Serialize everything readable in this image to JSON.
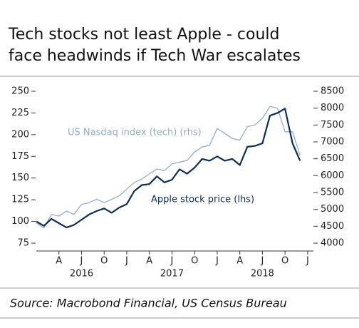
{
  "chart_data": {
    "type": "line",
    "title": [
      "Tech stocks not least Apple - could",
      "face headwinds if Tech War escalates"
    ],
    "source": "Source: Macrobond Financial, US Census Bureau",
    "x": [
      "2016-01",
      "2016-02",
      "2016-03",
      "2016-04",
      "2016-05",
      "2016-06",
      "2016-07",
      "2016-08",
      "2016-09",
      "2016-10",
      "2016-11",
      "2016-12",
      "2017-01",
      "2017-02",
      "2017-03",
      "2017-04",
      "2017-05",
      "2017-06",
      "2017-07",
      "2017-08",
      "2017-09",
      "2017-10",
      "2017-11",
      "2017-12",
      "2018-01",
      "2018-02",
      "2018-03",
      "2018-04",
      "2018-05",
      "2018-06",
      "2018-07",
      "2018-08",
      "2018-09",
      "2018-10",
      "2018-11",
      "2018-12"
    ],
    "series": [
      {
        "name": "US Nasdaq index (tech) (rhs)",
        "color": "#93abc9",
        "axis": "y2",
        "values": [
          4600,
          4450,
          4850,
          4800,
          4950,
          4850,
          5150,
          5200,
          5300,
          5200,
          5300,
          5400,
          5600,
          5800,
          5900,
          6050,
          6200,
          6150,
          6350,
          6400,
          6450,
          6700,
          6850,
          6900,
          7400,
          7250,
          7100,
          7050,
          7450,
          7500,
          7700,
          8050,
          8000,
          7300,
          7300,
          6600
        ]
      },
      {
        "name": "Apple stock price (lhs)",
        "color": "#0e2d52",
        "axis": "y",
        "values": [
          100,
          95,
          103,
          98,
          93,
          96,
          102,
          108,
          112,
          115,
          110,
          116,
          120,
          135,
          142,
          143,
          152,
          145,
          148,
          160,
          155,
          162,
          172,
          170,
          175,
          170,
          172,
          165,
          186,
          187,
          190,
          222,
          225,
          230,
          190,
          170
        ]
      }
    ],
    "ylim": [
      75,
      250
    ],
    "yticks": [
      75,
      100,
      125,
      150,
      175,
      200,
      225,
      250
    ],
    "y2lim": [
      4000,
      8500
    ],
    "y2ticks": [
      4000,
      4500,
      5000,
      5500,
      6000,
      6500,
      7000,
      7500,
      8000,
      8500
    ],
    "xticks": [
      {
        "value": "2016-04",
        "label": "A"
      },
      {
        "value": "2016-07",
        "label": "J"
      },
      {
        "value": "2016-10",
        "label": "O"
      },
      {
        "value": "2017-01",
        "label": "J"
      },
      {
        "value": "2017-04",
        "label": "A"
      },
      {
        "value": "2017-07",
        "label": "J"
      },
      {
        "value": "2017-10",
        "label": "O"
      },
      {
        "value": "2018-01",
        "label": "J"
      },
      {
        "value": "2018-04",
        "label": "A"
      },
      {
        "value": "2018-07",
        "label": "J"
      },
      {
        "value": "2018-10",
        "label": "O"
      },
      {
        "value": "2019-01",
        "label": "J"
      }
    ],
    "year_labels": [
      {
        "value": "2016-07",
        "label": "2016"
      },
      {
        "value": "2017-07",
        "label": "2017"
      },
      {
        "value": "2018-07",
        "label": "2018"
      }
    ]
  }
}
